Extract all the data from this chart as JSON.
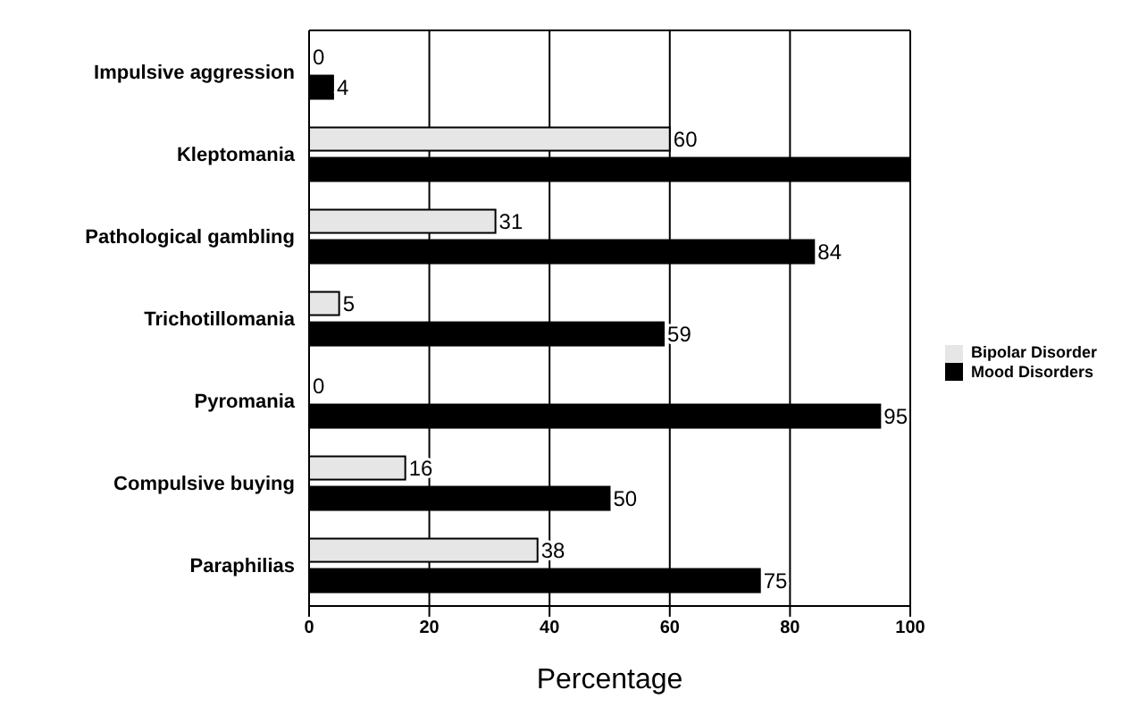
{
  "chart_data": {
    "type": "bar",
    "orientation": "horizontal",
    "xlabel": "Percentage",
    "categories": [
      "Impulsive aggression",
      "Kleptomania",
      "Pathological gambling",
      "Trichotillomania",
      "Pyromania",
      "Compulsive buying",
      "Paraphilias"
    ],
    "series": [
      {
        "name": "Bipolar Disorder",
        "color": "#e6e6e6",
        "values": [
          0,
          60,
          31,
          5,
          0,
          16,
          38
        ],
        "value_labels": [
          "0",
          "60",
          "31",
          "5",
          "0",
          "16",
          "38"
        ]
      },
      {
        "name": "Mood Disorders",
        "color": "#000000",
        "values": [
          4,
          100,
          84,
          59,
          95,
          50,
          75
        ],
        "value_labels": [
          "4",
          null,
          "84",
          "59",
          "95",
          "50",
          "75"
        ]
      }
    ],
    "xlim": [
      0,
      100
    ],
    "xticks": [
      0,
      20,
      40,
      60,
      80,
      100
    ],
    "grid": "x",
    "legend": "right"
  }
}
